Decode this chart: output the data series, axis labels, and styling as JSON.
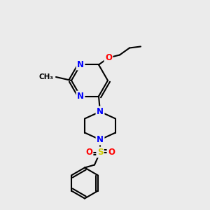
{
  "background_color": "#ebebeb",
  "atom_colors": {
    "N": "#0000ff",
    "O": "#ff0000",
    "S": "#cccc00",
    "C": "#000000"
  },
  "bond_color": "#000000",
  "bond_width": 1.5,
  "font_size_atom": 8.5
}
